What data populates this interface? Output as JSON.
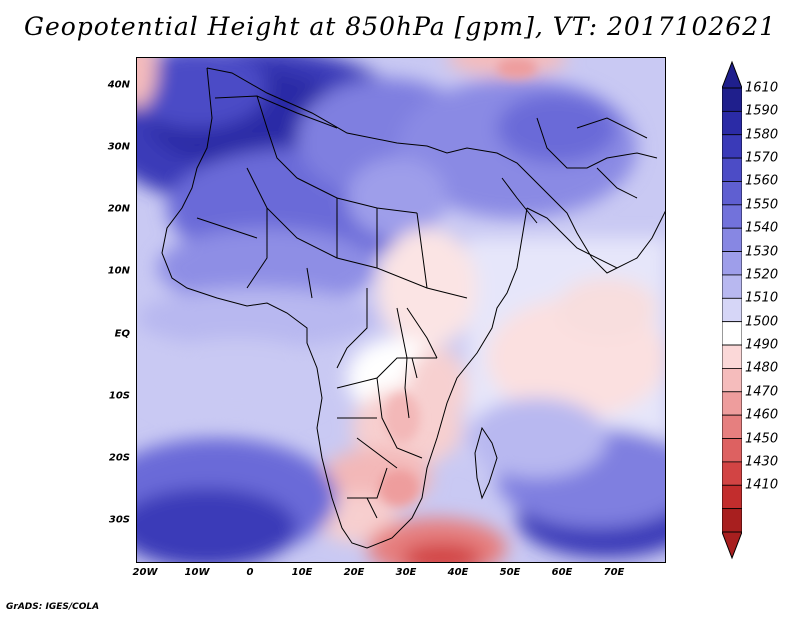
{
  "title": "Geopotential Height at 850hPa [gpm], VT: 2017102621",
  "credit": "GrADS: IGES/COLA",
  "lat_ticks": [
    "40N",
    "30N",
    "20N",
    "10N",
    "EQ",
    "10S",
    "20S",
    "30S"
  ],
  "lon_ticks": [
    "20W",
    "10W",
    "0",
    "10E",
    "20E",
    "30E",
    "40E",
    "50E",
    "60E",
    "70E"
  ],
  "colorbar": {
    "labels": [
      "1610",
      "1590",
      "1580",
      "1570",
      "1560",
      "1550",
      "1540",
      "1530",
      "1520",
      "1510",
      "1500",
      "1490",
      "1480",
      "1470",
      "1460",
      "1450",
      "1430",
      "1410"
    ],
    "colors": [
      "#1f1f8c",
      "#2b2ba6",
      "#3a3ab8",
      "#4c4cc6",
      "#5f5fd1",
      "#7272db",
      "#8787e3",
      "#9e9eea",
      "#b8b8f0",
      "#d6d6f7",
      "#ffffff",
      "#fbd8d8",
      "#f5bcbc",
      "#ee9d9d",
      "#e67f7f",
      "#dd6161",
      "#d24444",
      "#c22d2d",
      "#a81f1f"
    ]
  },
  "chart_data": {
    "type": "heatmap",
    "title": "Geopotential Height at 850hPa [gpm], VT: 2017102621",
    "variable": "Geopotential Height",
    "level": "850hPa",
    "units": "gpm",
    "valid_time": "2017102621",
    "lon_range": [
      -22,
      80
    ],
    "lat_range": [
      -37,
      45
    ],
    "levels": [
      1410,
      1430,
      1450,
      1460,
      1470,
      1480,
      1490,
      1500,
      1510,
      1520,
      1530,
      1540,
      1550,
      1560,
      1570,
      1580,
      1590,
      1610
    ]
  }
}
